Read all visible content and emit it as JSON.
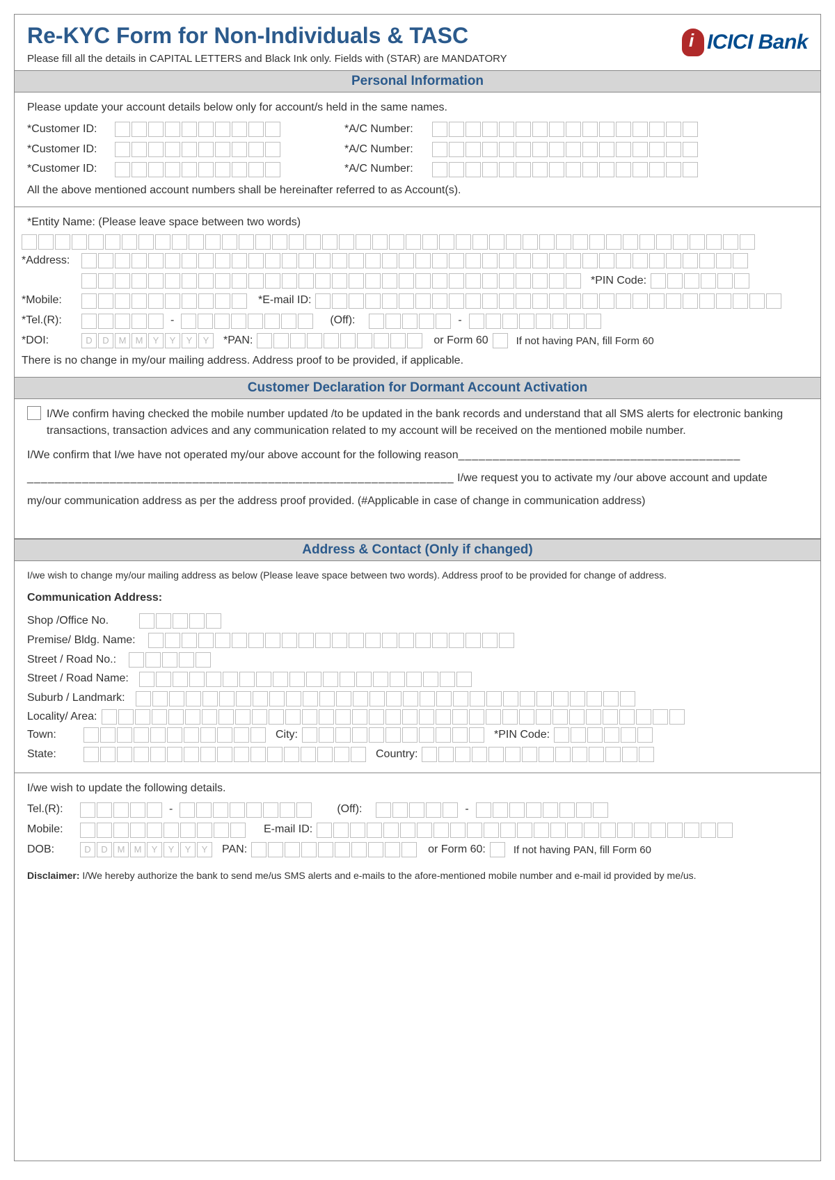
{
  "colors": {
    "heading": "#2b5a8c",
    "section_bg": "#d6d6d6",
    "border": "#888888",
    "box_border": "#bfbfbf",
    "logo_red": "#b02a2a",
    "logo_blue": "#004b8d"
  },
  "header": {
    "title": "Re-KYC Form for Non-Individuals & TASC",
    "subtitle": "Please fill all the details in CAPITAL LETTERS and Black Ink only. Fields with (STAR) are MANDATORY",
    "logo_text": "ICICI Bank"
  },
  "sections": {
    "personal": "Personal Information",
    "dormant": "Customer Declaration for Dormant Account Activation",
    "address": "Address & Contact (Only if changed)"
  },
  "personal": {
    "intro": "Please update your account details below only for account/s held in the same names.",
    "cust_id": "*Customer ID:",
    "ac_num": "*A/C Number:",
    "outro": "All the above mentioned account numbers shall be hereinafter referred to as Account(s).",
    "entity": "*Entity Name: (Please leave space between two words)",
    "address": "*Address:",
    "pin": "*PIN Code:",
    "mobile": "*Mobile:",
    "email": "*E-mail ID:",
    "telr": "*Tel.(R):",
    "off": "(Off):",
    "doi": "*DOI:",
    "pan": "*PAN:",
    "form60": "or  Form 60",
    "form60_note": "If not having PAN, fill Form 60",
    "no_change": "There is no change in my/our mailing address. Address proof to be provided, if applicable."
  },
  "dormant": {
    "confirm1": "I/We confirm having checked the mobile number updated /to be updated in the bank records and understand that all SMS alerts for electronic banking transactions, transaction advices  and any communication related to my account  will be received on the mentioned mobile number.",
    "confirm2a": "I/We confirm that I/we have not operated my/our above account fo",
    "confirm2b": "r the following reason",
    "blank1": "_________________________________________",
    "blank2": "______________________________________________________________",
    "request1": " I/we request you to activate my /our above account and update",
    "request2": "my/our communication address as per the address proof provided. (#Applicable in case of change in communication address)"
  },
  "addr": {
    "intro": "I/we wish to change my/our mailing address as below (Please leave space between two words). Address proof to be provided for change of address.",
    "comm": "Communication Address:",
    "shop": "Shop /Office No.",
    "premise": "Premise/ Bldg. Name:",
    "street_no": "Street / Road No.:",
    "street_name": "Street / Road Name:",
    "suburb": "Suburb / Landmark:",
    "locality": "Locality/ Area:",
    "town": "Town:",
    "city": "City:",
    "pin": "*PIN Code:",
    "state": "State:",
    "country": "Country:",
    "update_intro": "I/we wish to update the following details.",
    "telr": "Tel.(R):",
    "off": "(Off):",
    "mobile": "Mobile:",
    "email": "E-mail ID:",
    "dob": "DOB:",
    "pan": "PAN:",
    "form60": "or Form 60:",
    "form60_note": "If not having PAN, fill Form 60",
    "disclaimer_label": "Disclaimer:",
    "disclaimer": " I/We hereby authorize the bank to send me/us SMS alerts and e-mails to the afore-mentioned mobile number and e-mail id provided by me/us."
  },
  "date_ph": [
    "D",
    "D",
    "M",
    "M",
    "Y",
    "Y",
    "Y",
    "Y"
  ]
}
